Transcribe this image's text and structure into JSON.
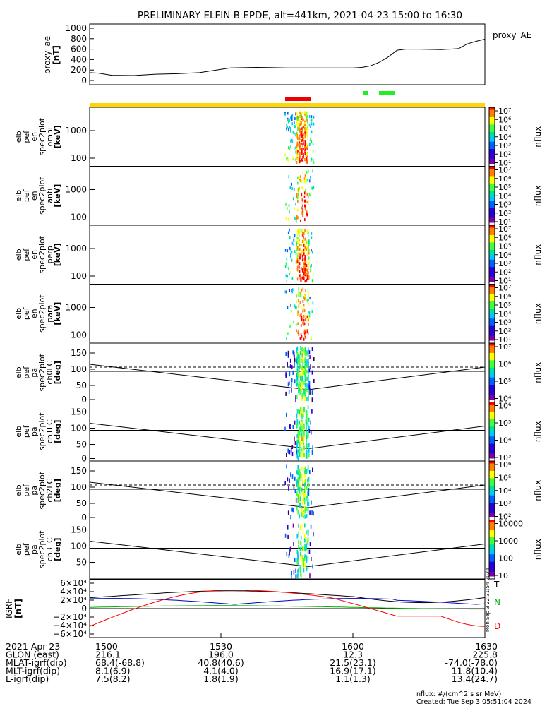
{
  "title": "PRELIMINARY ELFIN-B EPDE, alt=441km, 2021-04-23 15:00 to 16:30",
  "proxy_ae": {
    "ylabel": [
      "proxy_ae",
      "[nT]"
    ],
    "legend": "proxy_AE",
    "yticks": [
      "1000",
      "800",
      "600",
      "400",
      "200",
      "0"
    ],
    "ylim": [
      0,
      1100
    ],
    "x_min": [
      0,
      2,
      5,
      10,
      15,
      20,
      25,
      32,
      38,
      45,
      50,
      55,
      60,
      62,
      64,
      66,
      68,
      70,
      72,
      75,
      80,
      84,
      86,
      88,
      90
    ],
    "values": [
      150,
      140,
      100,
      95,
      120,
      130,
      150,
      240,
      250,
      240,
      240,
      240,
      240,
      250,
      280,
      350,
      450,
      580,
      600,
      600,
      590,
      610,
      700,
      750,
      790
    ]
  },
  "panels": [
    {
      "ylabel": [
        "elb",
        "pef",
        "en",
        "spec2plot",
        "omni",
        "[keV]"
      ],
      "yticks": [
        "1000",
        "100"
      ],
      "cb_ticks": [
        "10⁷",
        "10⁶",
        "10⁵",
        "10⁴",
        "10³",
        "10²",
        "10¹"
      ],
      "cb_label": "nflux"
    },
    {
      "ylabel": [
        "elb",
        "pef",
        "en",
        "spec2plot",
        "anti",
        "[keV]"
      ],
      "yticks": [
        "1000",
        "100"
      ],
      "cb_ticks": [
        "10⁷",
        "10⁶",
        "10⁵",
        "10⁴",
        "10³",
        "10²",
        "10¹"
      ],
      "cb_label": "nflux"
    },
    {
      "ylabel": [
        "elb",
        "pef",
        "en",
        "spec2plot",
        "perp",
        "[keV]"
      ],
      "yticks": [
        "1000",
        "100"
      ],
      "cb_ticks": [
        "10⁷",
        "10⁶",
        "10⁵",
        "10⁴",
        "10³",
        "10²",
        "10¹"
      ],
      "cb_label": "nflux"
    },
    {
      "ylabel": [
        "elb",
        "pef",
        "en",
        "spec2plot",
        "para",
        "[keV]"
      ],
      "yticks": [
        "1000",
        "100"
      ],
      "cb_ticks": [
        "10⁷",
        "10⁶",
        "10⁵",
        "10⁴",
        "10³",
        "10²",
        "10¹"
      ],
      "cb_label": "nflux"
    },
    {
      "ylabel": [
        "elb",
        "pef",
        "pa",
        "spec2plot",
        "ch0LC",
        "[deg]"
      ],
      "yticks": [
        "150",
        "100",
        "50",
        "0"
      ],
      "cb_ticks": [
        "10⁷",
        "10⁶",
        "10⁵",
        "10⁴"
      ],
      "cb_label": "nflux"
    },
    {
      "ylabel": [
        "elb",
        "pef",
        "pa",
        "spec2plot",
        "ch1LC",
        "[deg]"
      ],
      "yticks": [
        "150",
        "100",
        "50",
        "0"
      ],
      "cb_ticks": [
        "10⁶",
        "10⁵",
        "10⁴",
        "10³"
      ],
      "cb_label": "nflux"
    },
    {
      "ylabel": [
        "elb",
        "pef",
        "pa",
        "spec2plot",
        "ch2LC",
        "[deg]"
      ],
      "yticks": [
        "150",
        "100",
        "50",
        "0"
      ],
      "cb_ticks": [
        "10⁶",
        "10⁵",
        "10⁴",
        "10³",
        "10²"
      ],
      "cb_label": "nflux"
    },
    {
      "ylabel": [
        "elb",
        "pef",
        "pa",
        "spec2plot",
        "ch3LC",
        "[deg]"
      ],
      "yticks": [
        "150",
        "100",
        "50"
      ],
      "cb_ticks": [
        "10000",
        "1000",
        "100",
        "10"
      ],
      "cb_label": "nflux"
    }
  ],
  "igrf": {
    "ylabel": [
      "IGRF",
      "[nT]"
    ],
    "yticks": [
      "6×10⁴",
      "4×10⁴",
      "2×10⁴",
      "0",
      "−2×10⁴",
      "−4×10⁴",
      "−6×10⁴"
    ],
    "legend": [
      {
        "name": "T",
        "color": "#000000"
      },
      {
        "name": "N",
        "color": "#00aa00"
      },
      {
        "name": "D",
        "color": "#ff0000"
      }
    ],
    "stamp": "Mon Sep 3 22:31:54 2024"
  },
  "xaxis": {
    "ticks": [
      "1500",
      "1530",
      "1600",
      "1630"
    ],
    "rows": [
      {
        "label": "2021 Apr 23",
        "vals": [
          "1500",
          "1530",
          "1600",
          "1630"
        ]
      },
      {
        "label": "GLON (east)",
        "vals": [
          "216.1",
          "196.0",
          "12.3",
          "225.8"
        ]
      },
      {
        "label": "MLAT-igrf(dip)",
        "vals": [
          "68.4(-68.8)",
          "40.8(40.6)",
          "21.5(23.1)",
          "-74.0(-78.0)"
        ]
      },
      {
        "label": "MLT-igrf(dip)",
        "vals": [
          "8.1(6.9)",
          "4.1(4.0)",
          "16.9(17.1)",
          "11.8(10.4)"
        ]
      },
      {
        "label": "L-igrf(dip)",
        "vals": [
          "7.5(8.2)",
          "1.8(1.9)",
          "1.1(1.3)",
          "13.4(24.7)"
        ]
      }
    ]
  },
  "footer": {
    "units": "nflux: #/(cm^2 s sr MeV)",
    "created": "Created: Tue Sep  3 05:51:04 2024"
  }
}
